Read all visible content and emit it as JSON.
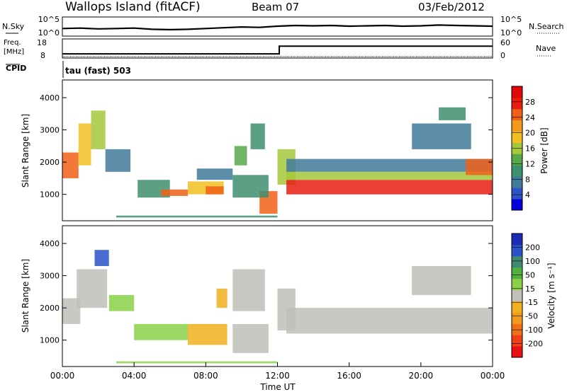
{
  "header": {
    "site": "Wallops Island (fitACF)",
    "beam": "Beam 07",
    "date": "03/Feb/2012"
  },
  "side_labels": {
    "nsky": "N.Sky",
    "nsearch": "N.Search",
    "freq_line1": "Freq.",
    "freq_line2": "[MHz]",
    "cpid": "CPID",
    "nave": "Nave",
    "cpid_value": "tau (fast) 503"
  },
  "noise_axis": {
    "left_ticks": [
      "10^5",
      "10^0"
    ],
    "right_ticks": [
      "10^5",
      "10^0"
    ]
  },
  "freq_axis": {
    "left_ticks": [
      18,
      8
    ],
    "right_ticks": [
      60,
      0
    ]
  },
  "chart_data": [
    {
      "type": "line",
      "name": "noise",
      "x": [
        0,
        1,
        2,
        3,
        4,
        5,
        6,
        7,
        8,
        9,
        10,
        11,
        12,
        13,
        14,
        15,
        16,
        17,
        18,
        19,
        20,
        21,
        22,
        23,
        24
      ],
      "series": [
        {
          "name": "N.Sky",
          "values": [
            1.8,
            1.9,
            1.7,
            1.8,
            1.9,
            1.6,
            1.5,
            1.6,
            1.8,
            2.0,
            2.2,
            2.1,
            2.4,
            2.6,
            2.5,
            2.6,
            2.4,
            2.5,
            2.6,
            2.4,
            2.5,
            2.7,
            2.6,
            2.5,
            2.4
          ]
        }
      ],
      "ylim_log10": [
        0,
        5
      ]
    },
    {
      "type": "line",
      "name": "frequency",
      "x": [
        0,
        12.1,
        12.1,
        24
      ],
      "series": [
        {
          "name": "Freq.",
          "values": [
            10.2,
            10.2,
            14.2,
            14.2
          ]
        }
      ],
      "ylim": [
        8,
        18
      ]
    },
    {
      "type": "heatmap",
      "name": "power",
      "xlabel": "",
      "ylabel": "Slant Range [km]",
      "xlim": [
        0,
        24
      ],
      "ylim": [
        180,
        4550
      ],
      "yticks": [
        1000,
        2000,
        3000,
        4000
      ],
      "colorbar": {
        "label": "Power [dB]",
        "ticks": [
          4,
          8,
          12,
          16,
          20,
          24,
          28
        ],
        "colors": [
          "#0000dd",
          "#2c52c8",
          "#3f7a9a",
          "#3e8f6e",
          "#56a84a",
          "#a4c83a",
          "#f0c020",
          "#f39a1c",
          "#f06018",
          "#e81c10",
          "#e00808"
        ]
      },
      "regions": [
        {
          "x0": 0.0,
          "x1": 0.9,
          "y0": 1500,
          "y1": 2300,
          "value": 22
        },
        {
          "x0": 0.9,
          "x1": 1.6,
          "y0": 1900,
          "y1": 3200,
          "value": 18
        },
        {
          "x0": 1.6,
          "x1": 2.4,
          "y0": 2400,
          "y1": 3600,
          "value": 14
        },
        {
          "x0": 2.4,
          "x1": 3.8,
          "y0": 1700,
          "y1": 2400,
          "value": 7
        },
        {
          "x0": 4.2,
          "x1": 6.0,
          "y0": 900,
          "y1": 1450,
          "value": 10
        },
        {
          "x0": 5.5,
          "x1": 7.0,
          "y0": 950,
          "y1": 1150,
          "value": 24
        },
        {
          "x0": 7.0,
          "x1": 9.0,
          "y0": 1000,
          "y1": 1400,
          "value": 18
        },
        {
          "x0": 8.0,
          "x1": 9.0,
          "y0": 1000,
          "y1": 1250,
          "value": 24
        },
        {
          "x0": 7.5,
          "x1": 9.5,
          "y0": 1450,
          "y1": 1800,
          "value": 8
        },
        {
          "x0": 9.6,
          "x1": 10.3,
          "y0": 1900,
          "y1": 2500,
          "value": 12
        },
        {
          "x0": 10.5,
          "x1": 11.3,
          "y0": 2400,
          "y1": 3200,
          "value": 10
        },
        {
          "x0": 11.0,
          "x1": 12.0,
          "y0": 400,
          "y1": 1100,
          "value": 22
        },
        {
          "x0": 9.5,
          "x1": 11.5,
          "y0": 900,
          "y1": 1600,
          "value": 9
        },
        {
          "x0": 3.0,
          "x1": 12.0,
          "y0": 280,
          "y1": 340,
          "value": 10
        },
        {
          "x0": 12.0,
          "x1": 13.0,
          "y0": 1300,
          "y1": 2400,
          "value": 16
        },
        {
          "x0": 12.5,
          "x1": 24.0,
          "y0": 1000,
          "y1": 1450,
          "value": 27
        },
        {
          "x0": 12.5,
          "x1": 24.0,
          "y0": 1450,
          "y1": 1700,
          "value": 16
        },
        {
          "x0": 12.5,
          "x1": 24.0,
          "y0": 1700,
          "y1": 2100,
          "value": 7
        },
        {
          "x0": 22.5,
          "x1": 24.0,
          "y0": 1600,
          "y1": 2100,
          "value": 24
        },
        {
          "x0": 19.5,
          "x1": 22.8,
          "y0": 2400,
          "y1": 3200,
          "value": 8
        },
        {
          "x0": 21.0,
          "x1": 22.5,
          "y0": 3300,
          "y1": 3700,
          "value": 10
        }
      ]
    },
    {
      "type": "heatmap",
      "name": "velocity",
      "xlabel": "Time UT",
      "ylabel": "Slant Range [km]",
      "xlim": [
        0,
        24
      ],
      "ylim": [
        180,
        4550
      ],
      "yticks": [
        1000,
        2000,
        3000,
        4000
      ],
      "xticks": [
        "00:00",
        "04:00",
        "08:00",
        "12:00",
        "16:00",
        "20:00",
        "00:00"
      ],
      "colorbar": {
        "label": "Velocity [m s⁻¹]",
        "ticks": [
          "200",
          "100",
          "50",
          "15",
          "-15",
          "-50",
          "-100",
          "-200"
        ],
        "colors": [
          "#1a2db4",
          "#2c52c8",
          "#3f8a6e",
          "#50b040",
          "#8ad048",
          "#c0c0b8",
          "#f0b020",
          "#f39a1c",
          "#f07018",
          "#f04018",
          "#e81010"
        ]
      },
      "regions": [
        {
          "x0": 0.0,
          "x1": 1.0,
          "y0": 1500,
          "y1": 2300,
          "value": 5
        },
        {
          "x0": 0.8,
          "x1": 2.5,
          "y0": 2000,
          "y1": 3200,
          "value": 5
        },
        {
          "x0": 1.8,
          "x1": 2.6,
          "y0": 3300,
          "y1": 3800,
          "value": 180
        },
        {
          "x0": 2.6,
          "x1": 4.0,
          "y0": 1900,
          "y1": 2400,
          "value": 60
        },
        {
          "x0": 4.0,
          "x1": 7.0,
          "y0": 1000,
          "y1": 1500,
          "value": 35
        },
        {
          "x0": 7.0,
          "x1": 9.2,
          "y0": 850,
          "y1": 1500,
          "value": -60
        },
        {
          "x0": 8.6,
          "x1": 9.2,
          "y0": 2000,
          "y1": 2600,
          "value": -50
        },
        {
          "x0": 9.5,
          "x1": 11.3,
          "y0": 1900,
          "y1": 3200,
          "value": 5
        },
        {
          "x0": 9.5,
          "x1": 11.5,
          "y0": 600,
          "y1": 1500,
          "value": 0
        },
        {
          "x0": 3.0,
          "x1": 12.0,
          "y0": 280,
          "y1": 340,
          "value": 30
        },
        {
          "x0": 12.0,
          "x1": 13.0,
          "y0": 1300,
          "y1": 2600,
          "value": 5
        },
        {
          "x0": 12.5,
          "x1": 24.0,
          "y0": 1200,
          "y1": 2000,
          "value": 0
        },
        {
          "x0": 19.5,
          "x1": 22.8,
          "y0": 2400,
          "y1": 3300,
          "value": 0
        }
      ]
    }
  ]
}
